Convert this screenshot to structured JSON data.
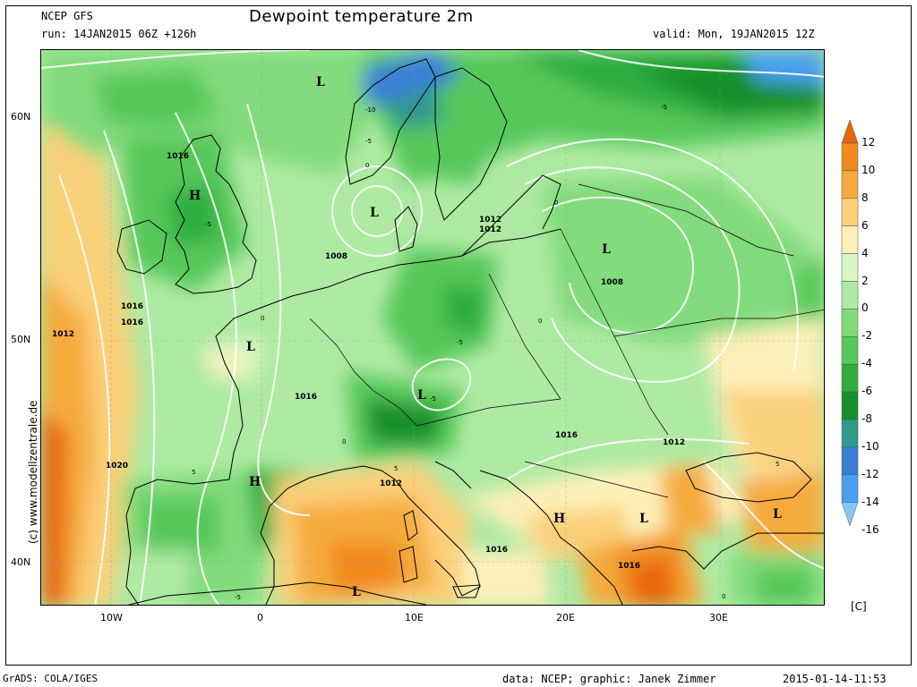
{
  "header": {
    "model": "NCEP GFS",
    "run": "run: 14JAN2015 06Z +126h",
    "title": "Dewpoint temperature 2m",
    "valid": "valid: Mon, 19JAN2015 12Z"
  },
  "axes": {
    "lat_labels": [
      "60N",
      "50N",
      "40N"
    ],
    "lon_labels": [
      "10W",
      "0",
      "10E",
      "20E",
      "30E"
    ]
  },
  "watermark": "(c)  www.modellzentrale.de",
  "colorbar": {
    "unit": "[C]",
    "levels": [
      "12",
      "10",
      "8",
      "6",
      "4",
      "2",
      "0",
      "-2",
      "-4",
      "-6",
      "-8",
      "-10",
      "-12",
      "-14",
      "-16"
    ],
    "colors": [
      "#e8650f",
      "#f08a1e",
      "#f6ab3c",
      "#fbd07a",
      "#fdf0b8",
      "#d9f5c4",
      "#aeeaa2",
      "#82db7b",
      "#56c85a",
      "#2fad40",
      "#178f2c",
      "#2e9a8c",
      "#3a7fd6",
      "#4a9ff0",
      "#86c6f7"
    ]
  },
  "pressure_labels": {
    "highs": [
      "H",
      "H",
      "H"
    ],
    "lows": [
      "L",
      "L",
      "L",
      "L",
      "L",
      "L",
      "L",
      "L"
    ],
    "isobars": [
      "1016",
      "1012",
      "1012",
      "1008",
      "1008",
      "1016",
      "1016",
      "1012",
      "1020",
      "1016",
      "1012",
      "1016",
      "1012",
      "1016",
      "1016"
    ],
    "isodrosotherms": [
      "-10",
      "-5",
      "0",
      "-5",
      "-5",
      "0",
      "-5",
      "0",
      "0",
      "5",
      "5",
      "0",
      "-5",
      "-5",
      "5",
      "0"
    ]
  },
  "footer": {
    "left": "GrADS: COLA/IGES",
    "credit": "data: NCEP; graphic: Janek Zimmer",
    "timestamp": "2015-01-14-11:53"
  }
}
